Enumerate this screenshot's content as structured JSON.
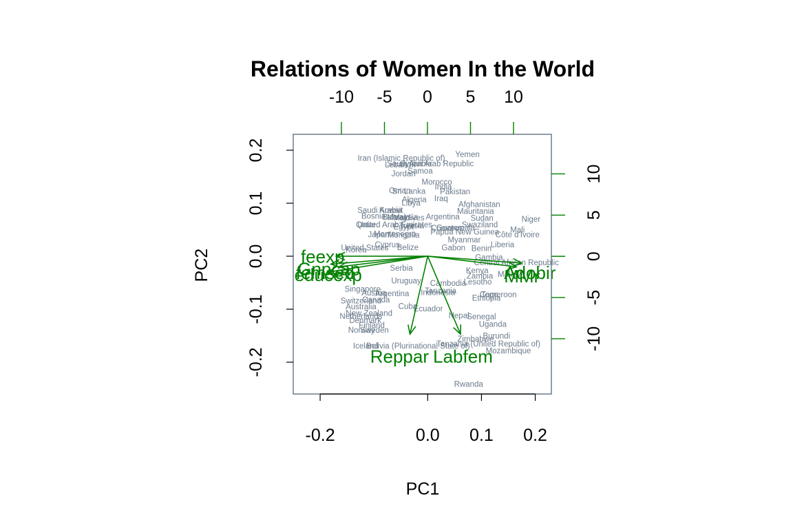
{
  "chart_data": {
    "type": "scatter",
    "subtype": "biplot",
    "title": "Relations of Women In the World",
    "xlabel": "PC1",
    "ylabel": "PC2",
    "xlim": [
      -0.25,
      0.23
    ],
    "ylim": [
      -0.26,
      0.23
    ],
    "x_ticks": [
      "-0.2",
      "0.0",
      "0.1",
      "0.2"
    ],
    "x_tick_values": [
      -0.2,
      0.0,
      0.1,
      0.2
    ],
    "y_ticks": [
      "-0.2",
      "-0.1",
      "0.0",
      "0.1",
      "0.2"
    ],
    "y_tick_values": [
      -0.2,
      -0.1,
      0.0,
      0.1,
      0.2
    ],
    "top_axis": {
      "range": [
        -15.6,
        14.4
      ],
      "ticks": [
        "-10",
        "-5",
        "0",
        "5",
        "10"
      ],
      "values": [
        -10,
        -5,
        0,
        5,
        10
      ]
    },
    "right_axis": {
      "range": [
        -16.7,
        14.8
      ],
      "ticks": [
        "-10",
        "-5",
        "0",
        "5",
        "10"
      ],
      "values": [
        -10,
        -5,
        0,
        5,
        10
      ]
    },
    "colors": {
      "countries": "#6b7b8c",
      "arrows": "#008000",
      "frame": "#6b7b8c",
      "text": "#000000"
    },
    "countries": [
      {
        "name": "Yemen",
        "x": 0.074,
        "y": 0.192
      },
      {
        "name": "Iran (Islamic Republic of)",
        "x": -0.049,
        "y": 0.185
      },
      {
        "name": "Syrian Arab Republic",
        "x": 0.017,
        "y": 0.175
      },
      {
        "name": "Lebanon",
        "x": -0.051,
        "y": 0.173
      },
      {
        "name": "Saudi Arabia",
        "x": -0.034,
        "y": 0.175
      },
      {
        "name": "Samoa",
        "x": -0.014,
        "y": 0.161
      },
      {
        "name": "Jordan",
        "x": -0.045,
        "y": 0.156
      },
      {
        "name": "Morocco",
        "x": 0.017,
        "y": 0.14
      },
      {
        "name": "India",
        "x": 0.029,
        "y": 0.131
      },
      {
        "name": "Pakistan",
        "x": 0.051,
        "y": 0.122
      },
      {
        "name": "Sri Lanka",
        "x": -0.035,
        "y": 0.123
      },
      {
        "name": "Oman",
        "x": -0.052,
        "y": 0.124
      },
      {
        "name": "Algeria",
        "x": -0.025,
        "y": 0.107
      },
      {
        "name": "Iraq",
        "x": 0.025,
        "y": 0.109
      },
      {
        "name": "Libya",
        "x": -0.031,
        "y": 0.101
      },
      {
        "name": "Afghanistan",
        "x": 0.096,
        "y": 0.098
      },
      {
        "name": "Mauritania",
        "x": 0.089,
        "y": 0.085
      },
      {
        "name": "Saudi Arabia",
        "x": -0.089,
        "y": 0.087
      },
      {
        "name": "Kuwait",
        "x": -0.068,
        "y": 0.087
      },
      {
        "name": "Bosnia",
        "x": -0.101,
        "y": 0.076
      },
      {
        "name": "Malaysia",
        "x": -0.047,
        "y": 0.074
      },
      {
        "name": "Maldives",
        "x": -0.035,
        "y": 0.073
      },
      {
        "name": "Bahrain",
        "x": -0.059,
        "y": 0.074
      },
      {
        "name": "Argentina",
        "x": 0.028,
        "y": 0.075
      },
      {
        "name": "Sudan",
        "x": 0.101,
        "y": 0.072
      },
      {
        "name": "Niger",
        "x": 0.192,
        "y": 0.07
      },
      {
        "name": "Qatar",
        "x": -0.115,
        "y": 0.06
      },
      {
        "name": "United Arab Emirates",
        "x": -0.061,
        "y": 0.06
      },
      {
        "name": "Tunisia",
        "x": -0.03,
        "y": 0.058
      },
      {
        "name": "Egypt",
        "x": -0.045,
        "y": 0.056
      },
      {
        "name": "Swaziland",
        "x": 0.097,
        "y": 0.06
      },
      {
        "name": "Guatemala",
        "x": 0.052,
        "y": 0.054
      },
      {
        "name": "Mali",
        "x": 0.167,
        "y": 0.05
      },
      {
        "name": "Papua New Guinea",
        "x": 0.069,
        "y": 0.046
      },
      {
        "name": "Comoros",
        "x": 0.036,
        "y": 0.053
      },
      {
        "name": "Côte d'Ivoire",
        "x": 0.167,
        "y": 0.041
      },
      {
        "name": "Japan",
        "x": -0.091,
        "y": 0.041
      },
      {
        "name": "Montenegro",
        "x": -0.061,
        "y": 0.042
      },
      {
        "name": "Mongolia",
        "x": -0.045,
        "y": 0.04
      },
      {
        "name": "Myanmar",
        "x": 0.068,
        "y": 0.031
      },
      {
        "name": "Liberia",
        "x": 0.139,
        "y": 0.022
      },
      {
        "name": "Benin",
        "x": 0.1,
        "y": 0.015
      },
      {
        "name": "Gabon",
        "x": 0.048,
        "y": 0.016
      },
      {
        "name": "United States",
        "x": -0.117,
        "y": 0.016
      },
      {
        "name": "Korea",
        "x": -0.133,
        "y": 0.012
      },
      {
        "name": "Cyprus",
        "x": -0.075,
        "y": 0.022
      },
      {
        "name": "Belize",
        "x": -0.037,
        "y": 0.017
      },
      {
        "name": "Gambia",
        "x": 0.114,
        "y": -0.002
      },
      {
        "name": "Central African Republic",
        "x": 0.165,
        "y": -0.012
      },
      {
        "name": "Kenya",
        "x": 0.092,
        "y": -0.027
      },
      {
        "name": "Malawi",
        "x": 0.153,
        "y": -0.034
      },
      {
        "name": "Zambia",
        "x": 0.097,
        "y": -0.037
      },
      {
        "name": "Lesotho",
        "x": 0.093,
        "y": -0.048
      },
      {
        "name": "Cambodia",
        "x": 0.038,
        "y": -0.051
      },
      {
        "name": "Tanzania",
        "x": 0.024,
        "y": -0.065
      },
      {
        "name": "Uruguay",
        "x": -0.04,
        "y": -0.046
      },
      {
        "name": "Serbia",
        "x": -0.049,
        "y": -0.022
      },
      {
        "name": "Singapore",
        "x": -0.121,
        "y": -0.062
      },
      {
        "name": "Austria",
        "x": -0.1,
        "y": -0.069
      },
      {
        "name": "Argentina",
        "x": -0.066,
        "y": -0.07
      },
      {
        "name": "Indonesia",
        "x": 0.019,
        "y": -0.068
      },
      {
        "name": "Togo",
        "x": 0.115,
        "y": -0.072
      },
      {
        "name": "Cameroon",
        "x": 0.131,
        "y": -0.072
      },
      {
        "name": "Ethiopia",
        "x": 0.109,
        "y": -0.079
      },
      {
        "name": "Switzerland",
        "x": -0.124,
        "y": -0.084
      },
      {
        "name": "Canada",
        "x": -0.096,
        "y": -0.082
      },
      {
        "name": "Australia",
        "x": -0.124,
        "y": -0.095
      },
      {
        "name": "Cuba",
        "x": -0.037,
        "y": -0.094
      },
      {
        "name": "Ecuador",
        "x": 0.001,
        "y": -0.099
      },
      {
        "name": "New Zealand",
        "x": -0.109,
        "y": -0.107
      },
      {
        "name": "Netherlands",
        "x": -0.124,
        "y": -0.113
      },
      {
        "name": "Nepal",
        "x": 0.058,
        "y": -0.112
      },
      {
        "name": "Senegal",
        "x": 0.1,
        "y": -0.114
      },
      {
        "name": "Denmark",
        "x": -0.116,
        "y": -0.121
      },
      {
        "name": "Uganda",
        "x": 0.121,
        "y": -0.128
      },
      {
        "name": "Finland",
        "x": -0.104,
        "y": -0.13
      },
      {
        "name": "Norway",
        "x": -0.123,
        "y": -0.139
      },
      {
        "name": "Sweden",
        "x": -0.099,
        "y": -0.139
      },
      {
        "name": "Burundi",
        "x": 0.128,
        "y": -0.15
      },
      {
        "name": "Zimbabwe",
        "x": 0.089,
        "y": -0.156
      },
      {
        "name": "Iceland",
        "x": -0.115,
        "y": -0.169
      },
      {
        "name": "Bolivia (Plurinational State of)",
        "x": -0.018,
        "y": -0.169
      },
      {
        "name": "Tanzania (United Republic of)",
        "x": 0.113,
        "y": -0.165
      },
      {
        "name": "Mozambique",
        "x": 0.15,
        "y": -0.178
      },
      {
        "name": "Rwanda",
        "x": 0.076,
        "y": -0.241
      }
    ],
    "variables": [
      {
        "name": "feexp",
        "x": -0.17,
        "y": 0.0
      },
      {
        "name": "Gnpcap",
        "x": -0.18,
        "y": -0.015
      },
      {
        "name": "femsec",
        "x": -0.165,
        "y": -0.02
      },
      {
        "name": "educexp",
        "x": -0.185,
        "y": -0.03
      },
      {
        "name": "Reppar",
        "x": -0.033,
        "y": -0.147
      },
      {
        "name": "Labfem",
        "x": 0.061,
        "y": -0.147
      },
      {
        "name": "Adobir",
        "x": 0.175,
        "y": -0.013
      },
      {
        "name": "MMr",
        "x": 0.165,
        "y": -0.02
      }
    ],
    "variable_labels": [
      {
        "name": "feexp",
        "x": -0.236,
        "y": -0.001
      },
      {
        "name": "Gnpcap",
        "x": -0.242,
        "y": -0.024
      },
      {
        "name": "femsec",
        "x": -0.245,
        "y": -0.031
      },
      {
        "name": "educexp",
        "x": -0.248,
        "y": -0.035
      },
      {
        "name": "Reppar",
        "x": -0.107,
        "y": -0.189
      },
      {
        "name": "Labfem",
        "x": 0.01,
        "y": -0.189
      },
      {
        "name": "Adobir",
        "x": 0.142,
        "y": -0.031
      },
      {
        "name": "MMr",
        "x": 0.142,
        "y": -0.038
      }
    ]
  }
}
